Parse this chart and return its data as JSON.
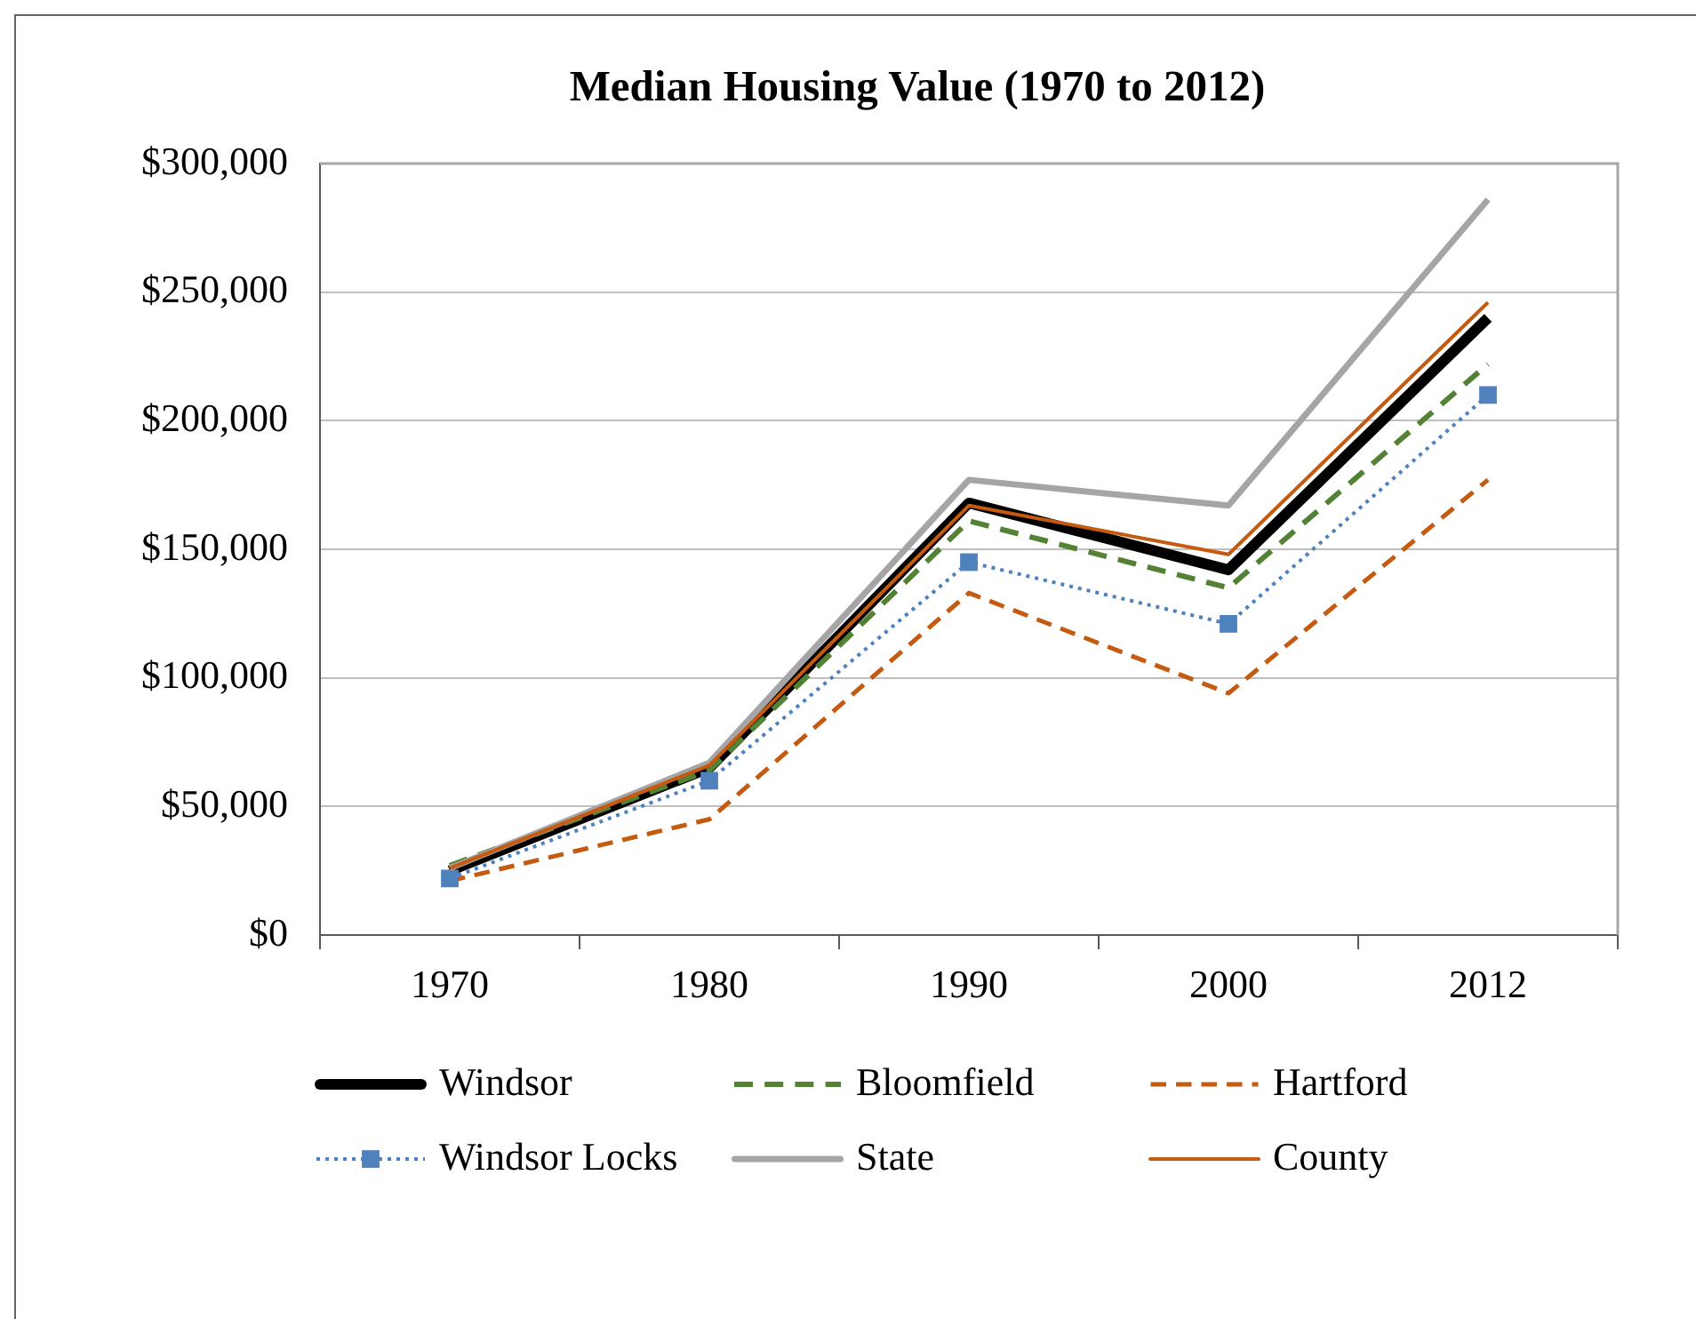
{
  "chart_data": {
    "type": "line",
    "title": "Median Housing Value (1970 to 2012)",
    "categories": [
      "1970",
      "1980",
      "1990",
      "2000",
      "2012"
    ],
    "series": [
      {
        "name": "Windsor",
        "color": "#000000",
        "line_style": "solid",
        "marker": "none",
        "values": [
          25000,
          65000,
          168000,
          142000,
          240000
        ]
      },
      {
        "name": "Bloomfield",
        "color": "#548235",
        "line_style": "dashed",
        "marker": "none",
        "values": [
          27000,
          64000,
          161000,
          135000,
          222000
        ]
      },
      {
        "name": "Hartford",
        "color": "#c55a11",
        "line_style": "dashed",
        "marker": "none",
        "values": [
          21000,
          45000,
          133000,
          94000,
          177000
        ]
      },
      {
        "name": "Windsor Locks",
        "color": "#4f81bd",
        "line_style": "dotted",
        "marker": "square",
        "values": [
          22000,
          60000,
          145000,
          121000,
          210000
        ]
      },
      {
        "name": "State",
        "color": "#a5a5a5",
        "line_style": "solid",
        "marker": "none",
        "values": [
          26000,
          67000,
          177000,
          167000,
          286000
        ]
      },
      {
        "name": "County",
        "color": "#c55a11",
        "line_style": "solid",
        "marker": "none",
        "values": [
          26000,
          66000,
          167000,
          148000,
          246000
        ]
      }
    ],
    "ylim": [
      0,
      300000
    ],
    "yticks": [
      {
        "value": 0,
        "label": "$0"
      },
      {
        "value": 50000,
        "label": "$50,000"
      },
      {
        "value": 100000,
        "label": "$100,000"
      },
      {
        "value": 150000,
        "label": "$150,000"
      },
      {
        "value": 200000,
        "label": "$200,000"
      },
      {
        "value": 250000,
        "label": "$250,000"
      },
      {
        "value": 300000,
        "label": "$300,000"
      }
    ],
    "grid": "y",
    "legend": "bottom"
  }
}
